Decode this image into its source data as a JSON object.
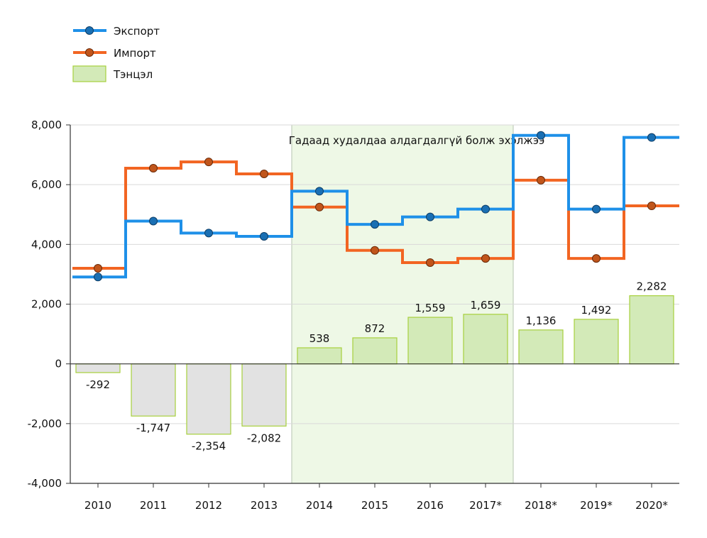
{
  "chart_data": {
    "type": "bar+step-line",
    "title": "",
    "categories": [
      "2010",
      "2011",
      "2012",
      "2013",
      "2014",
      "2015",
      "2016",
      "2017*",
      "2018*",
      "2019*",
      "2020*"
    ],
    "series": [
      {
        "name": "Экспорт",
        "kind": "step-line",
        "color": "#1e90e8",
        "values": [
          2910,
          4780,
          4380,
          4270,
          5780,
          4670,
          4920,
          5180,
          7650,
          5180,
          7580
        ]
      },
      {
        "name": "Импорт",
        "kind": "step-line",
        "color": "#f26522",
        "values": [
          3200,
          6550,
          6760,
          6360,
          5250,
          3800,
          3390,
          3530,
          6150,
          3530,
          5290
        ]
      },
      {
        "name": "Тэнцэл",
        "kind": "bar",
        "values": [
          -292,
          -1747,
          -2354,
          -2082,
          538,
          872,
          1559,
          1659,
          1136,
          1492,
          2282
        ],
        "labels": [
          "-292",
          "-1,747",
          "-2,354",
          "-2,082",
          "538",
          "872",
          "1,559",
          "1,659",
          "1,136",
          "1,492",
          "2,282"
        ]
      }
    ],
    "ylim": [
      -4000,
      8000
    ],
    "yticks": [
      -4000,
      -2000,
      0,
      2000,
      4000,
      6000,
      8000
    ],
    "ytick_labels": [
      "-4,000",
      "-2,000",
      "0",
      "2,000",
      "4,000",
      "6,000",
      "8,000"
    ],
    "highlight_region": {
      "from": "2014",
      "to": "2017*",
      "label": "Гадаад худалдаа алдагдалгүй болж эхэлжээ"
    },
    "legend_position": "top-left",
    "grid": true,
    "colors": {
      "export": "#1e90e8",
      "import": "#f26522",
      "marker_export": "#1a6fb3",
      "marker_import": "#c0551b",
      "bar_positive_fill": "#d3eab8",
      "bar_negative_fill": "#e2e2e2",
      "bar_stroke": "#a7d03c",
      "highlight_fill": "#eef8e6"
    }
  }
}
